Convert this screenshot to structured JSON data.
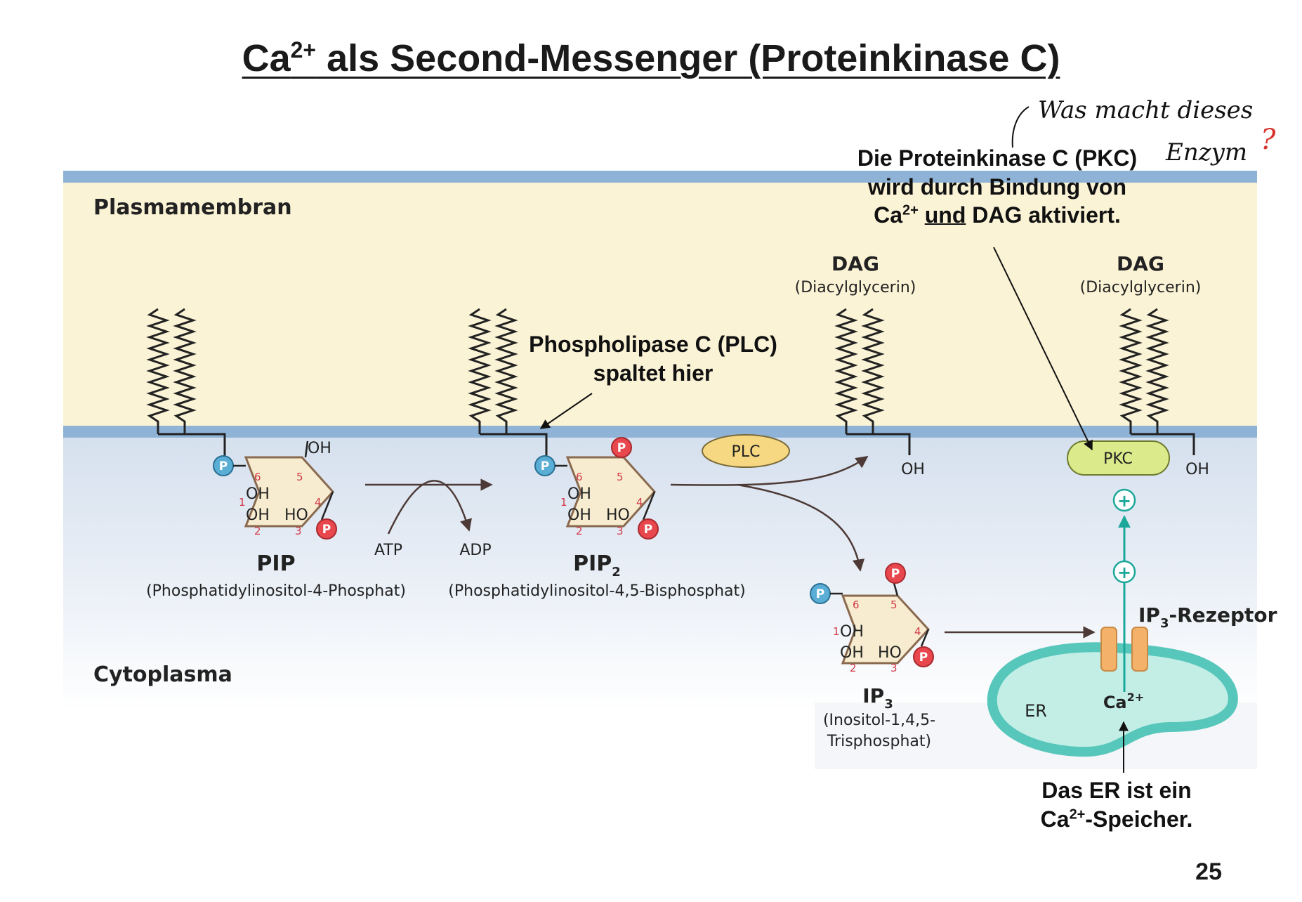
{
  "title": {
    "base": "Ca",
    "sup": "2+",
    "rest": " als Second-Messenger (Proteinkinase C)"
  },
  "handwritten_note": {
    "line1": "Was macht dieses",
    "line2": "Enzym",
    "mark": "?"
  },
  "regions": {
    "membrane": "Plasmamembran",
    "cytoplasm": "Cytoplasma"
  },
  "molecules": {
    "pip": {
      "name": "PIP",
      "full": "(Phosphatidylinositol-4-Phosphat)"
    },
    "pip2": {
      "name": "PIP",
      "sub": "2",
      "full": "(Phosphatidylinositol-4,5-Bisphosphat)"
    },
    "ip3": {
      "name": "IP",
      "sub": "3",
      "full1": "(Inositol-1,4,5-",
      "full2": "Trisphosphat)"
    },
    "dag_left": {
      "name": "DAG",
      "full": "(Diacylglycerin)"
    },
    "dag_right": {
      "name": "DAG",
      "full": "(Diacylglycerin)"
    }
  },
  "ring": {
    "oh": "OH",
    "ho": "HO",
    "phosphate": "P",
    "numbers": [
      "1",
      "2",
      "3",
      "4",
      "5",
      "6"
    ]
  },
  "reaction": {
    "atp": "ATP",
    "adp": "ADP"
  },
  "enzymes": {
    "plc": "PLC",
    "pkc": "PKC"
  },
  "plus": "+",
  "receptor": {
    "name": "IP",
    "sub": "3",
    "rest": "-Rezeptor"
  },
  "er": {
    "label": "ER",
    "ion": "Ca",
    "ion_sup": "2+"
  },
  "notes": {
    "pkc": {
      "line1": "Die Proteinkinase C (PKC)",
      "line2": "wird durch Bindung von",
      "line3_pre": "Ca",
      "line3_sup": "2+",
      "line3_und": "und",
      "line3_post": " DAG aktiviert."
    },
    "plc": {
      "line1": "Phospholipase C (PLC)",
      "line2": "spaltet hier"
    },
    "er": {
      "line1": "Das ER ist ein",
      "line2_pre": "Ca",
      "line2_sup": "2+",
      "line2_post": "-Speicher."
    }
  },
  "page_number": "25",
  "colors": {
    "membrane_band": "#8fb3d6",
    "membrane_fill": "#fbf3d6",
    "cytoplasm_top": "#d5e0ee",
    "phosphate_red": "#e8474d",
    "phosphate_blue": "#5aaed6",
    "ring_fill": "#f7ecd0",
    "plc_fill": "#f6d882",
    "pkc_fill": "#dbea8a",
    "er_fill": "#c2eee6",
    "er_stroke": "#58c7bb",
    "channel": "#f4b169",
    "teal_arrow": "#1aa89a",
    "arrow": "#4d3a36"
  }
}
